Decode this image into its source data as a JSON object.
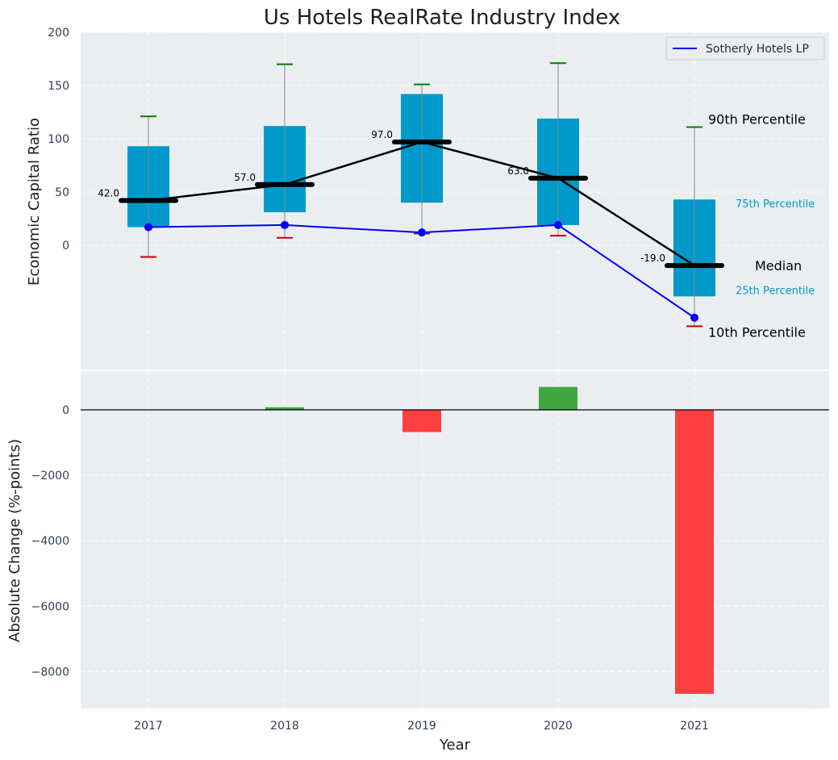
{
  "chart_data": [
    {
      "type": "box",
      "title": "Us Hotels RealRate Industry Index",
      "ylabel": "Economic Capital Ratio",
      "ylim": [
        -115,
        200
      ],
      "yticks": [
        0,
        50,
        100,
        150,
        200
      ],
      "categories": [
        "2017",
        "2018",
        "2019",
        "2020",
        "2021"
      ],
      "p10": [
        -11,
        7,
        11,
        9,
        -76
      ],
      "p25": [
        17,
        31,
        40,
        19,
        -48
      ],
      "median": [
        42,
        57,
        97,
        63,
        -19
      ],
      "p75": [
        93,
        112,
        142,
        119,
        43
      ],
      "p90": [
        121,
        170,
        151,
        171,
        111
      ],
      "median_labels": [
        "42.0",
        "57.0",
        "97.0",
        "63.0",
        "-19.0"
      ],
      "series": [
        {
          "name": "Sotherly Hotels LP",
          "values": [
            17,
            19,
            12,
            19,
            -68
          ],
          "color": "#0000ff"
        }
      ],
      "legend": "top-right",
      "annotations": {
        "p90": "90th Percentile",
        "p75": "75th Percentile",
        "median": "Median",
        "p25": "25th Percentile",
        "p10": "10th Percentile"
      },
      "grid": true
    },
    {
      "type": "bar",
      "ylabel": "Absolute Change (%-points)",
      "xlabel": "Year",
      "ylim": [
        -9100,
        1200
      ],
      "yticks": [
        0,
        -2000,
        -4000,
        -6000,
        -8000
      ],
      "ytick_labels": [
        "0",
        "−2000",
        "−4000",
        "−6000",
        "−8000"
      ],
      "categories": [
        "2017",
        "2018",
        "2019",
        "2020",
        "2021"
      ],
      "values": [
        0,
        80,
        -680,
        700,
        -8680
      ],
      "colors": {
        "positive": "#2ca02c",
        "negative": "#ff2b2b"
      },
      "grid": true
    }
  ],
  "colors": {
    "box_fill": "#0099cc",
    "median": "#000000",
    "p90_cap": "#008000",
    "p10_cap": "#cc0000",
    "panel_bg": "#eaeef0"
  }
}
